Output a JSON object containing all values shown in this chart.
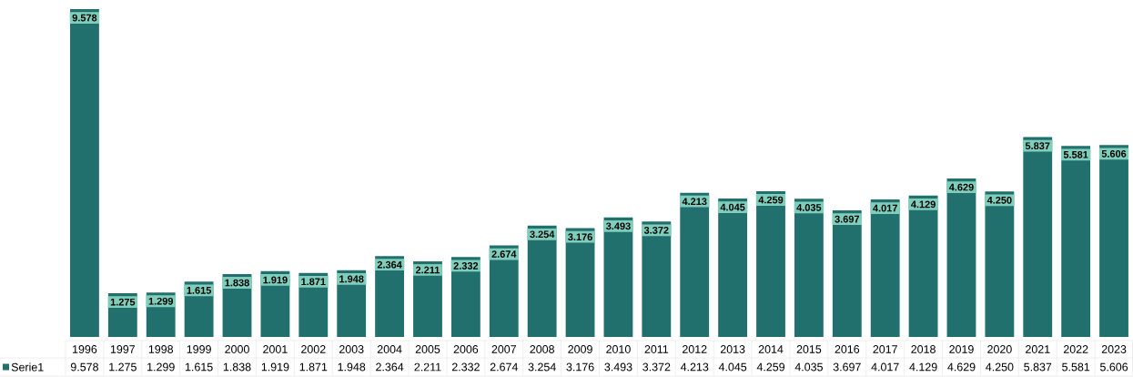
{
  "chart_data": {
    "type": "bar",
    "legend": "bottom left",
    "categories": [
      "1996",
      "1997",
      "1998",
      "1999",
      "2000",
      "2001",
      "2002",
      "2003",
      "2004",
      "2005",
      "2006",
      "2007",
      "2008",
      "2009",
      "2010",
      "2011",
      "2012",
      "2013",
      "2014",
      "2015",
      "2016",
      "2017",
      "2018",
      "2019",
      "2020",
      "2021",
      "2022",
      "2023"
    ],
    "series": [
      {
        "name": "Serie1",
        "color": "#22706e",
        "values": [
          9.578,
          1.275,
          1.299,
          1.615,
          1.838,
          1.919,
          1.871,
          1.948,
          2.364,
          2.211,
          2.332,
          2.674,
          3.254,
          3.176,
          3.493,
          3.372,
          4.213,
          4.045,
          4.259,
          4.035,
          3.697,
          4.017,
          4.129,
          4.629,
          4.25,
          5.837,
          5.581,
          5.606
        ],
        "value_labels": [
          "9.578",
          "1.275",
          "1.299",
          "1.615",
          "1.838",
          "1.919",
          "1.871",
          "1.948",
          "2.364",
          "2.211",
          "2.332",
          "2.674",
          "3.254",
          "3.176",
          "3.493",
          "3.372",
          "4.213",
          "4.045",
          "4.259",
          "4.035",
          "3.697",
          "4.017",
          "4.129",
          "4.629",
          "4.250",
          "5.837",
          "5.581",
          "5.606"
        ]
      }
    ]
  }
}
